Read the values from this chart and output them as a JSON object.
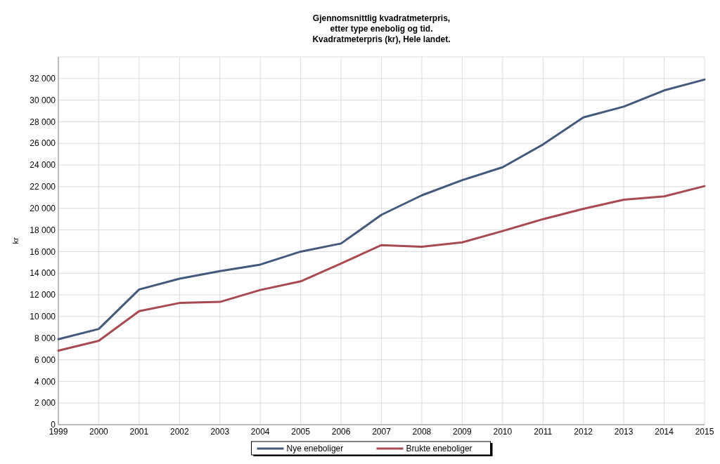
{
  "chart_data": {
    "type": "line",
    "title": "Gjennomsnittlig kvadratmeterpris,\netter type enebolig og tid.\nKvadratmeterpris (kr), Hele landet.",
    "ylabel": "kr",
    "x": [
      1999,
      2000,
      2001,
      2002,
      2003,
      2004,
      2005,
      2006,
      2007,
      2008,
      2009,
      2010,
      2011,
      2012,
      2013,
      2014,
      2015
    ],
    "xlim": [
      1999,
      2015
    ],
    "xticks": [
      1999,
      2000,
      2001,
      2002,
      2003,
      2004,
      2005,
      2006,
      2007,
      2008,
      2009,
      2010,
      2011,
      2012,
      2013,
      2014,
      2015
    ],
    "ylim": [
      0,
      34000
    ],
    "yticks": [
      0,
      {
        "value": 2000,
        "label": "2 000"
      },
      {
        "value": 4000,
        "label": "4 000"
      },
      {
        "value": 6000,
        "label": "6 000"
      },
      {
        "value": 8000,
        "label": "8 000"
      },
      {
        "value": 10000,
        "label": "10 000"
      },
      {
        "value": 12000,
        "label": "12 000"
      },
      {
        "value": 14000,
        "label": "14 000"
      },
      {
        "value": 16000,
        "label": "16 000"
      },
      {
        "value": 18000,
        "label": "18 000"
      },
      {
        "value": 20000,
        "label": "20 000"
      },
      {
        "value": 22000,
        "label": "22 000"
      },
      {
        "value": 24000,
        "label": "24 000"
      },
      {
        "value": 26000,
        "label": "26 000"
      },
      {
        "value": 28000,
        "label": "28 000"
      },
      {
        "value": 30000,
        "label": "30 000"
      },
      {
        "value": 32000,
        "label": "32 000"
      },
      {
        "value": 34000,
        "label": null
      }
    ],
    "series": [
      {
        "name": "Nye eneboliger",
        "color": "#435a7c",
        "values": [
          7900,
          8850,
          12500,
          13500,
          14200,
          14800,
          16000,
          16750,
          19400,
          21200,
          22600,
          23800,
          25900,
          28400,
          29400,
          30900,
          31900
        ]
      },
      {
        "name": "Brukte eneboliger",
        "color": "#a84a4f",
        "values": [
          6850,
          7750,
          10500,
          11250,
          11350,
          12450,
          13250,
          14900,
          16600,
          16450,
          16850,
          17900,
          19000,
          19950,
          20800,
          21100,
          22050
        ]
      }
    ],
    "grid": true,
    "legend": "bottom",
    "marker": "none",
    "line_style": "solid"
  }
}
